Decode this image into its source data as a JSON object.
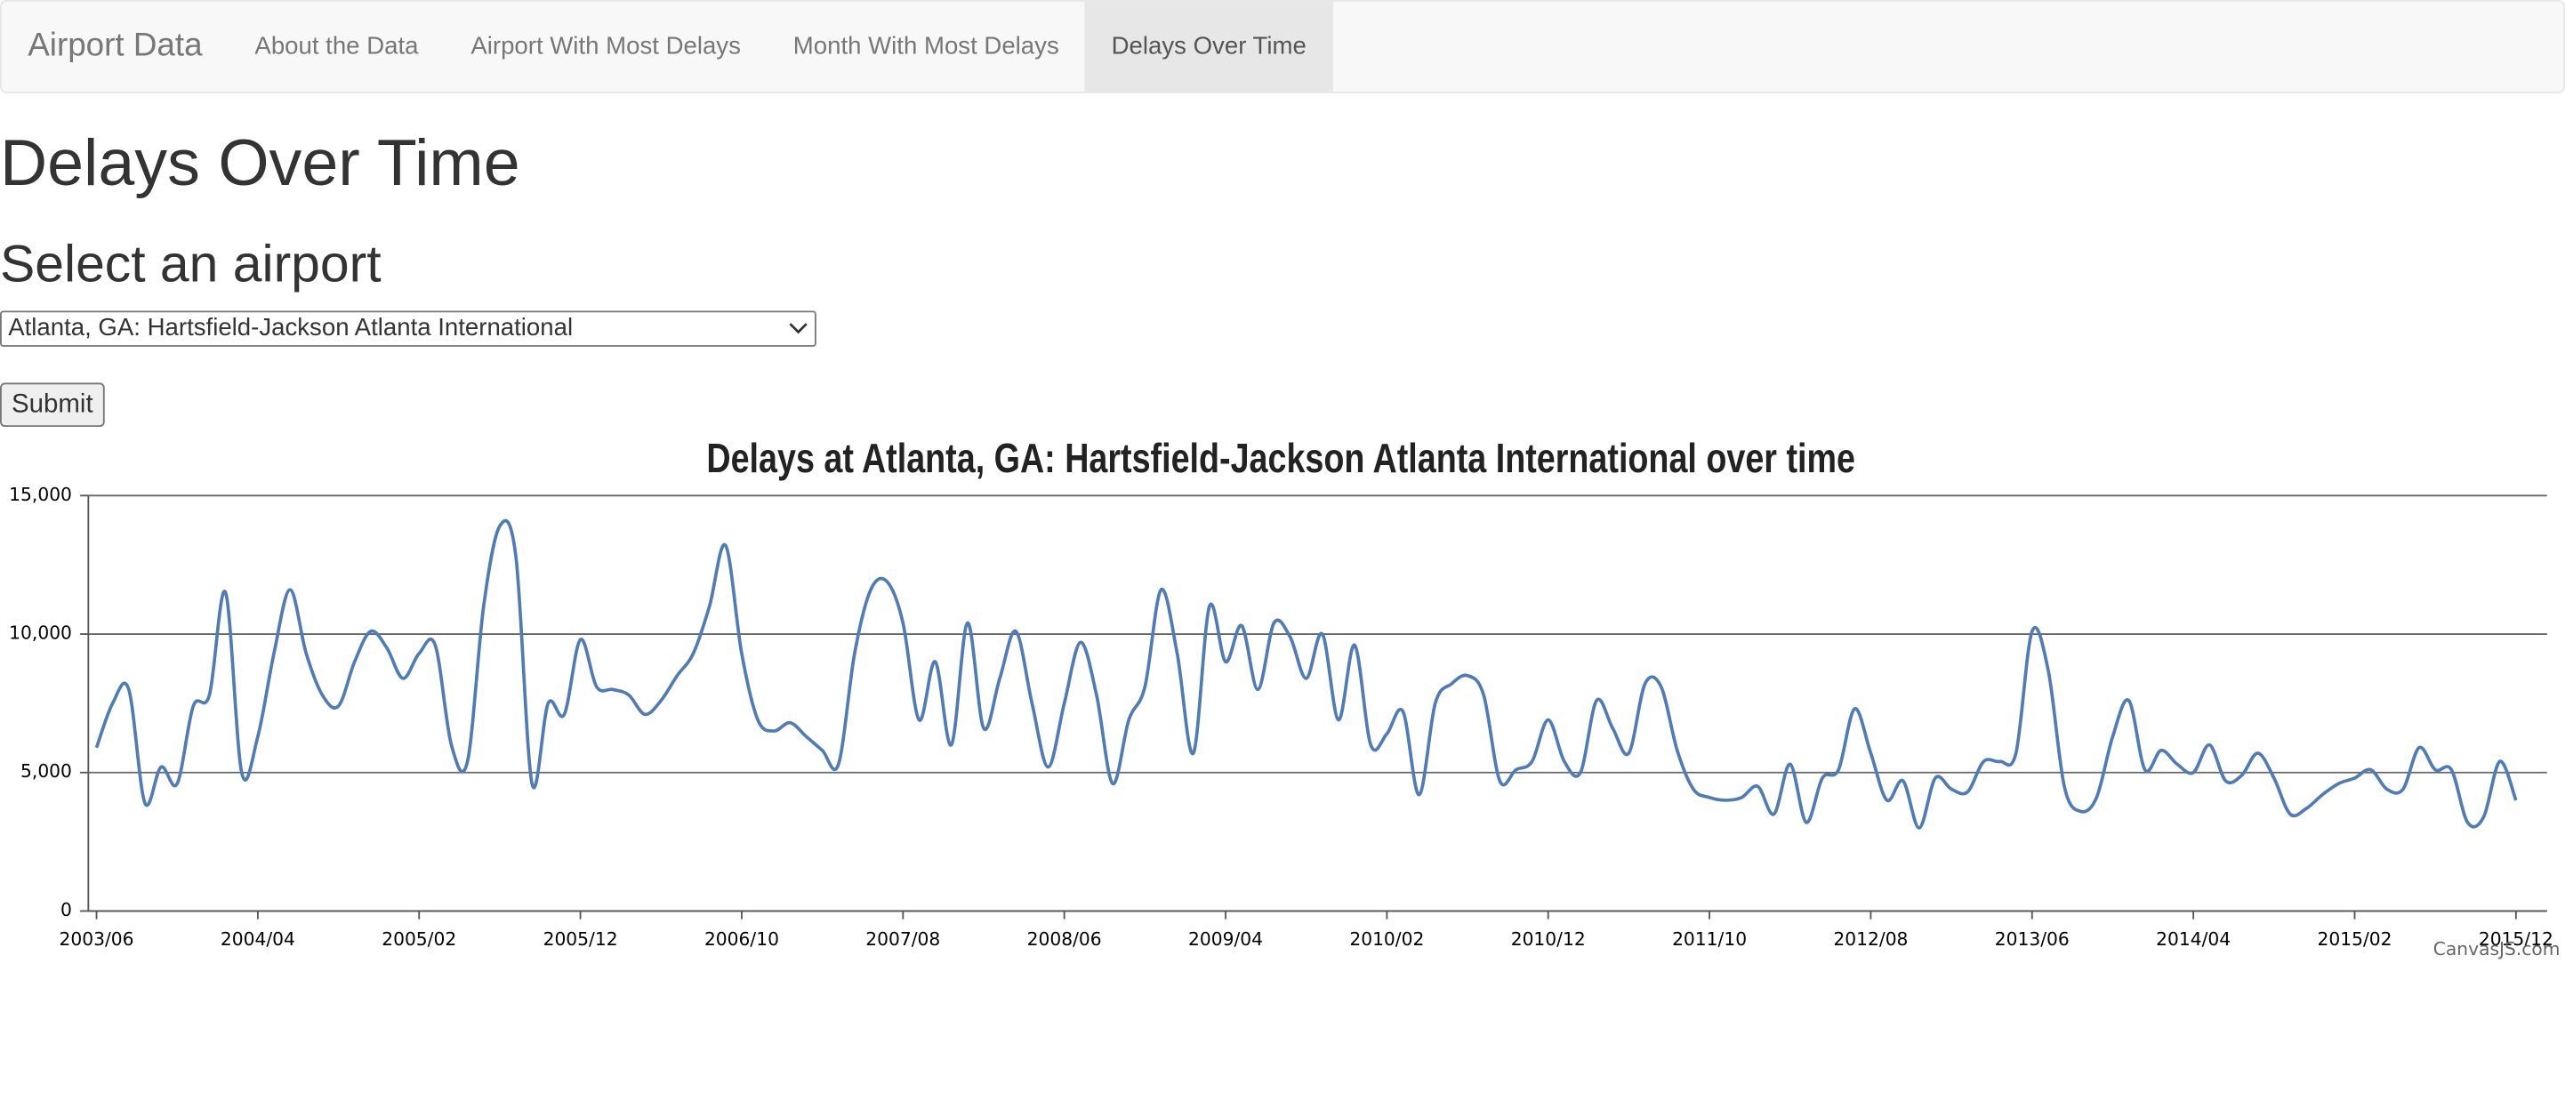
{
  "nav": {
    "brand": "Airport Data",
    "items": [
      "About the Data",
      "Airport With Most Delays",
      "Month With Most Delays",
      "Delays Over Time"
    ]
  },
  "heading": "Delays Over Time",
  "subheading": "Select an airport",
  "select": {
    "value": "Atlanta, GA: Hartsfield-Jackson Atlanta International"
  },
  "button": "Submit",
  "credit": "CanvasJS.com",
  "chart_data": {
    "type": "line",
    "title": "Delays at Atlanta, GA: Hartsfield-Jackson Atlanta International over time",
    "x": [
      "2003/06",
      "2003/07",
      "2003/08",
      "2003/09",
      "2003/10",
      "2003/11",
      "2003/12",
      "2004/01",
      "2004/02",
      "2004/03",
      "2004/04",
      "2004/05",
      "2004/06",
      "2004/07",
      "2004/08",
      "2004/09",
      "2004/10",
      "2004/11",
      "2004/12",
      "2005/01",
      "2005/02",
      "2005/03",
      "2005/04",
      "2005/05",
      "2005/06",
      "2005/07",
      "2005/08",
      "2005/09",
      "2005/10",
      "2005/11",
      "2005/12",
      "2006/01",
      "2006/02",
      "2006/03",
      "2006/04",
      "2006/05",
      "2006/06",
      "2006/07",
      "2006/08",
      "2006/09",
      "2006/10",
      "2006/11",
      "2006/12",
      "2007/01",
      "2007/02",
      "2007/03",
      "2007/04",
      "2007/05",
      "2007/06",
      "2007/07",
      "2007/08",
      "2007/09",
      "2007/10",
      "2007/11",
      "2007/12",
      "2008/01",
      "2008/02",
      "2008/03",
      "2008/04",
      "2008/05",
      "2008/06",
      "2008/07",
      "2008/08",
      "2008/09",
      "2008/10",
      "2008/11",
      "2008/12",
      "2009/01",
      "2009/02",
      "2009/03",
      "2009/04",
      "2009/05",
      "2009/06",
      "2009/07",
      "2009/08",
      "2009/09",
      "2009/10",
      "2009/11",
      "2009/12",
      "2010/01",
      "2010/02",
      "2010/03",
      "2010/04",
      "2010/05",
      "2010/06",
      "2010/07",
      "2010/08",
      "2010/09",
      "2010/10",
      "2010/11",
      "2010/12",
      "2011/01",
      "2011/02",
      "2011/03",
      "2011/04",
      "2011/05",
      "2011/06",
      "2011/07",
      "2011/08",
      "2011/09",
      "2011/10",
      "2011/11",
      "2011/12",
      "2012/01",
      "2012/02",
      "2012/03",
      "2012/04",
      "2012/05",
      "2012/06",
      "2012/07",
      "2012/08",
      "2012/09",
      "2012/10",
      "2012/11",
      "2012/12",
      "2013/01",
      "2013/02",
      "2013/03",
      "2013/04",
      "2013/05",
      "2013/06",
      "2013/07",
      "2013/08",
      "2013/09",
      "2013/10",
      "2013/11",
      "2013/12",
      "2014/01",
      "2014/02",
      "2014/03",
      "2014/04",
      "2014/05",
      "2014/06",
      "2014/07",
      "2014/08",
      "2014/09",
      "2014/10",
      "2014/11",
      "2014/12",
      "2015/01",
      "2015/02",
      "2015/03",
      "2015/04",
      "2015/05",
      "2015/06",
      "2015/07",
      "2015/08",
      "2015/09",
      "2015/10",
      "2015/11",
      "2015/12"
    ],
    "series": [
      {
        "name": "Delays",
        "color": "#4f7bb7",
        "values": [
          5900,
          7500,
          8000,
          3900,
          5200,
          4600,
          7400,
          7800,
          11500,
          5000,
          6300,
          9300,
          11600,
          9300,
          7800,
          7400,
          9000,
          10100,
          9500,
          8400,
          9300,
          9600,
          6000,
          5400,
          11000,
          13900,
          12800,
          4600,
          7500,
          7100,
          9800,
          8100,
          8000,
          7800,
          7100,
          7600,
          8500,
          9300,
          11000,
          13200,
          9300,
          6900,
          6500,
          6800,
          6300,
          5800,
          5300,
          9300,
          11600,
          11900,
          10400,
          6900,
          9000,
          6000,
          10400,
          6600,
          8400,
          10100,
          7500,
          5200,
          7500,
          9700,
          7800,
          4600,
          6900,
          8100,
          11600,
          9300,
          5700,
          11000,
          9000,
          10300,
          8000,
          10400,
          9900,
          8400,
          10000,
          6900,
          9600,
          6000,
          6400,
          7200,
          4200,
          7500,
          8200,
          8500,
          7800,
          4700,
          5100,
          5400,
          6900,
          5400,
          5000,
          7600,
          6600,
          5700,
          8200,
          8100,
          5800,
          4400,
          4100,
          4000,
          4100,
          4500,
          3500,
          5300,
          3200,
          4800,
          5100,
          7300,
          5700,
          4000,
          4700,
          3000,
          4800,
          4400,
          4300,
          5400,
          5400,
          5700,
          10100,
          8700,
          4500,
          3600,
          4100,
          6300,
          7600,
          5100,
          5800,
          5300,
          5000,
          6000,
          4700,
          4900,
          5700,
          4800,
          3500,
          3700,
          4200,
          4600,
          4800,
          5100,
          4400,
          4400,
          5900,
          5100,
          5100,
          3200,
          3400,
          5400,
          4000
        ]
      }
    ],
    "xticks": [
      "2003/06",
      "2004/04",
      "2005/02",
      "2005/12",
      "2006/10",
      "2007/08",
      "2008/06",
      "2009/04",
      "2010/02",
      "2010/12",
      "2011/10",
      "2012/08",
      "2013/06",
      "2014/04",
      "2015/02",
      "2015/12"
    ],
    "ylim": [
      0,
      15000
    ],
    "yticks": [
      0,
      {
        "value": 5000,
        "label": "5,000"
      },
      {
        "value": 10000,
        "label": "10,000"
      },
      {
        "value": 15000,
        "label": "15,000"
      }
    ],
    "grid": true
  }
}
